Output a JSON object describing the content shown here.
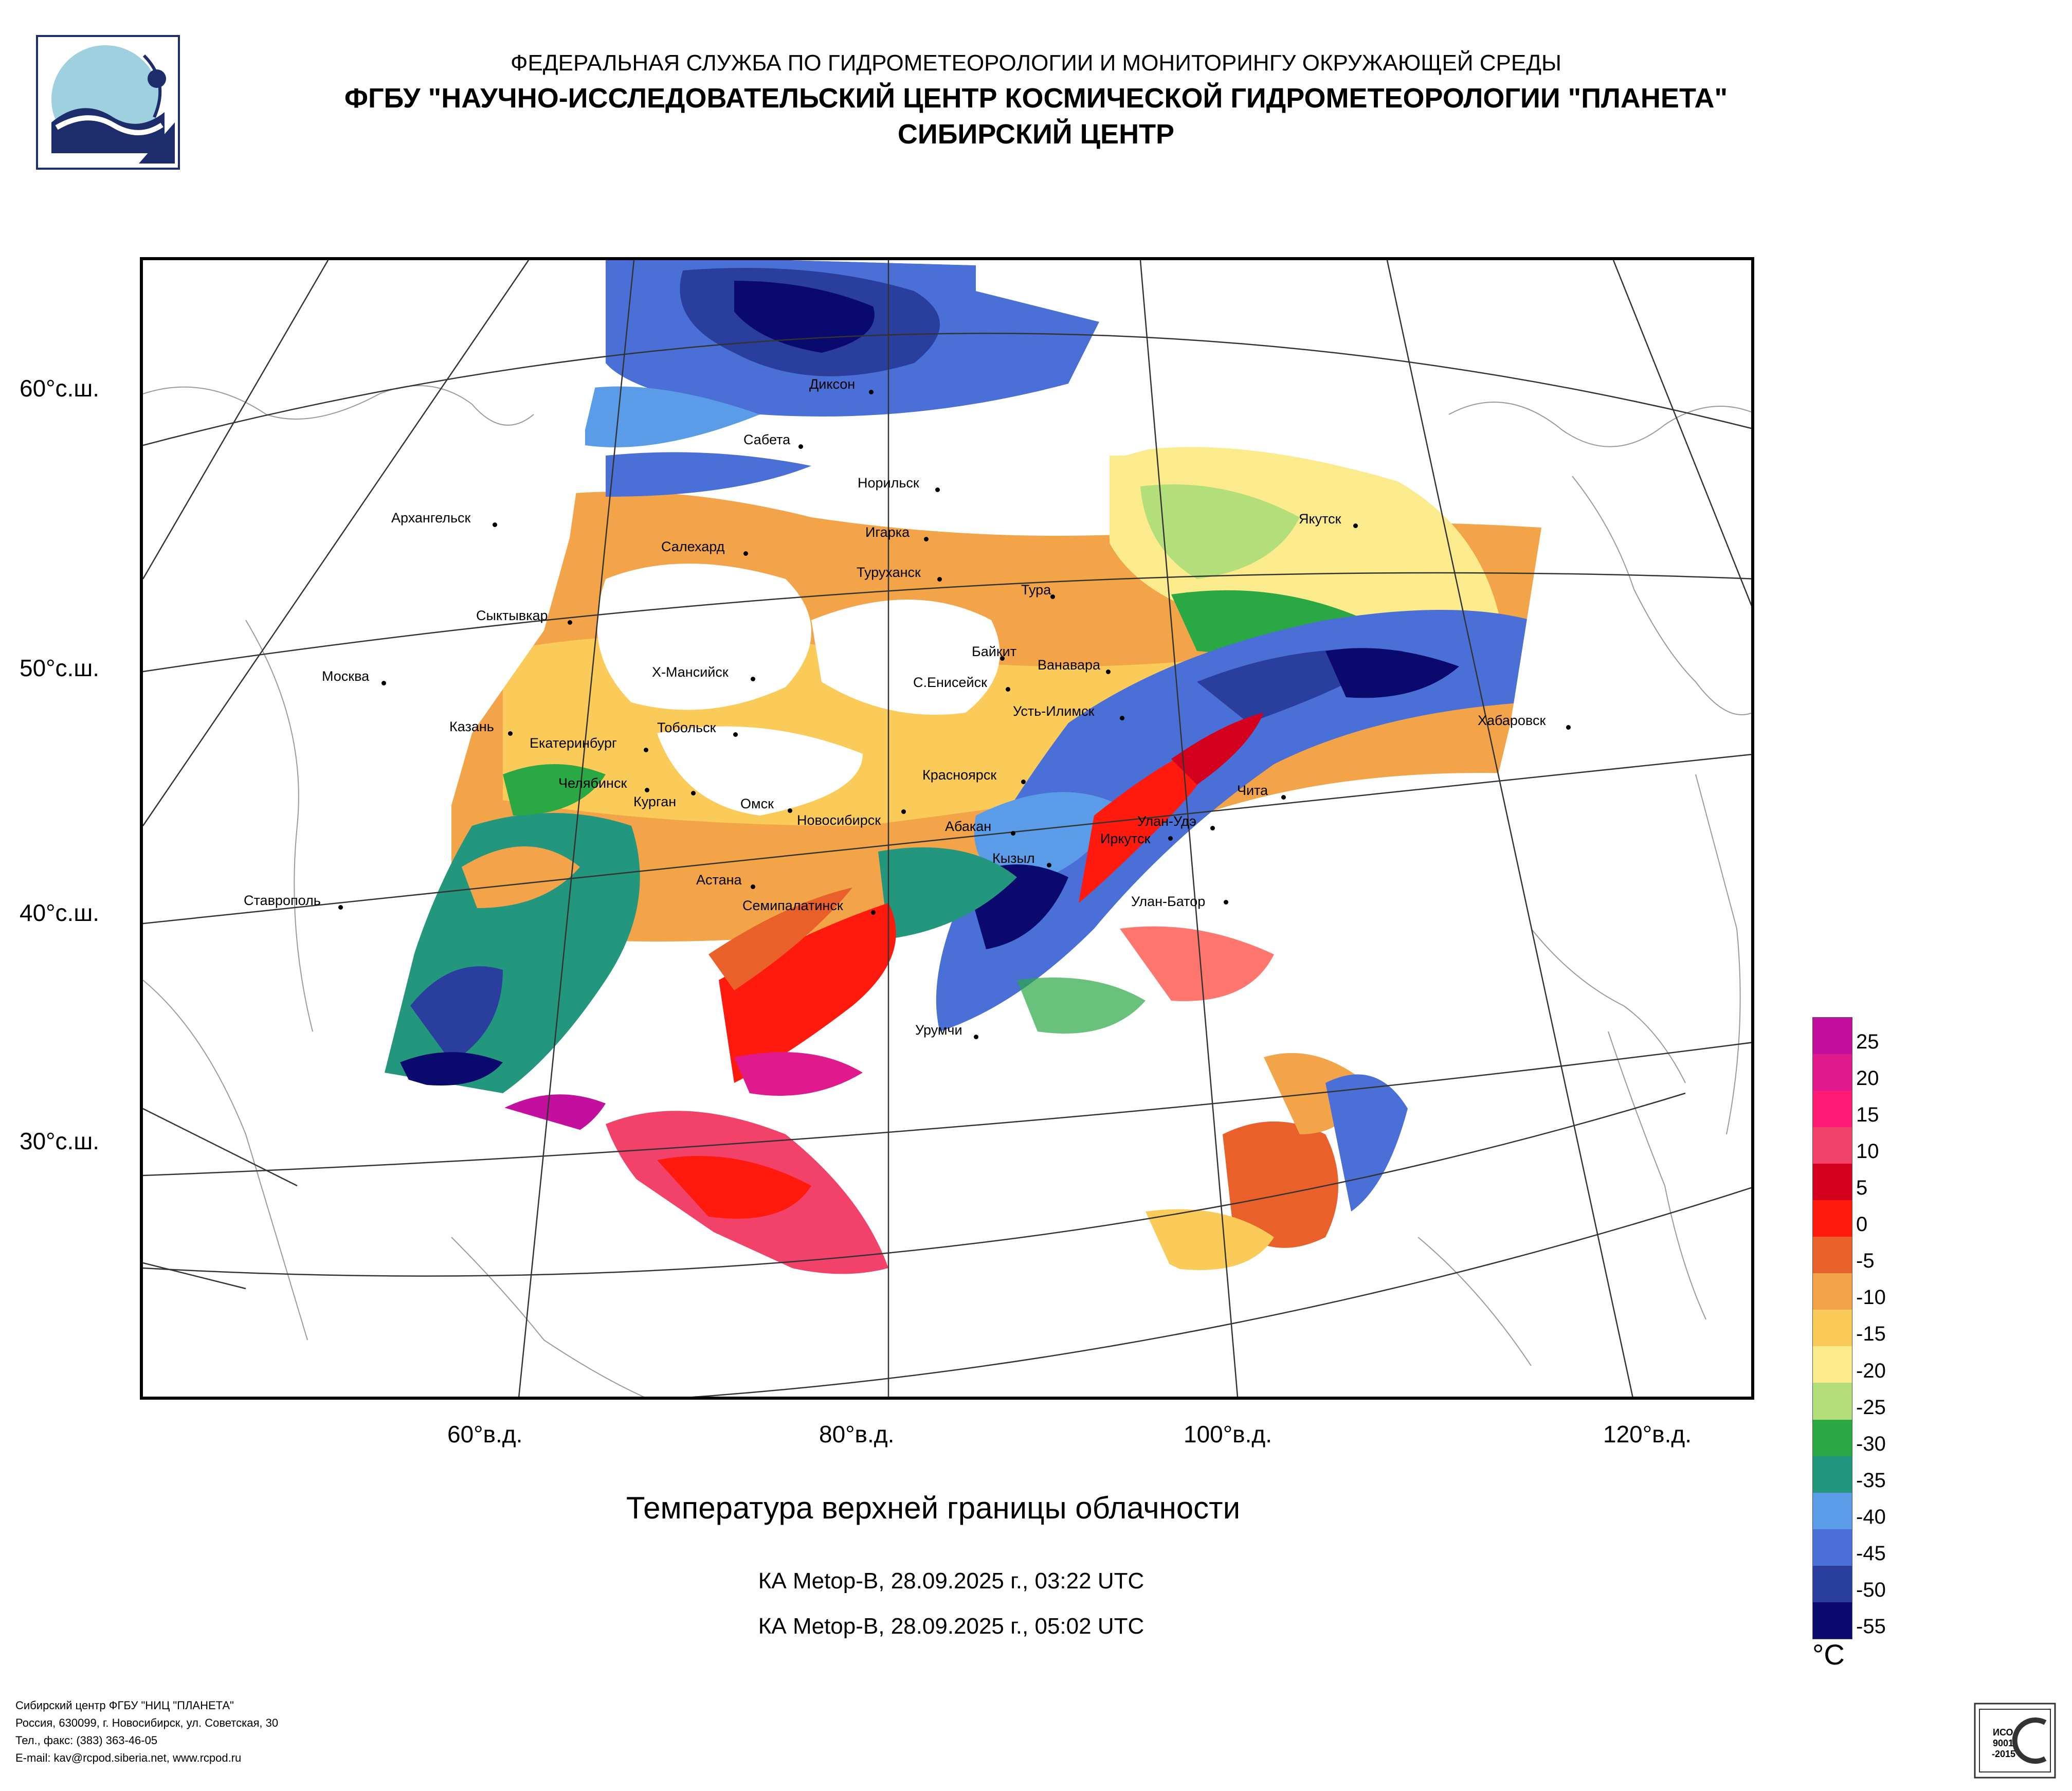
{
  "header": {
    "line1": "ФЕДЕРАЛЬНАЯ СЛУЖБА ПО ГИДРОМЕТЕОРОЛОГИИ И МОНИТОРИНГУ ОКРУЖАЮЩЕЙ СРЕДЫ",
    "line2": "ФГБУ \"НАУЧНО-ИССЛЕДОВАТЕЛЬСКИЙ ЦЕНТР КОСМИЧЕСКОЙ ГИДРОМЕТЕОРОЛОГИИ \"ПЛАНЕТА\"",
    "line3": "СИБИРСКИЙ ЦЕНТР"
  },
  "map": {
    "lat_labels": [
      "60°с.ш.",
      "50°с.ш.",
      "40°с.ш.",
      "30°с.ш."
    ],
    "lon_labels": [
      "60°в.д.",
      "80°в.д.",
      "100°в.д.",
      "120°в.д."
    ],
    "cities": [
      "Диксон",
      "Сабета",
      "Норильск",
      "Игарка",
      "Архангельск",
      "Салехард",
      "Туруханск",
      "Якутск",
      "Тура",
      "Сыктывкар",
      "Байкит",
      "Ванавара",
      "Х-Мансийск",
      "С.Енисейск",
      "Москва",
      "Усть-Илимск",
      "Хабаровск",
      "Казань",
      "Тобольск",
      "Екатеринбург",
      "Красноярск",
      "Чита",
      "Челябинск",
      "Курган",
      "Омск",
      "Новосибирск",
      "Абакан",
      "Улан-Удэ",
      "Иркутск",
      "Кызыл",
      "Астана",
      "Ставрополь",
      "Семипалатинск",
      "Улан-Батор",
      "Урумчи"
    ]
  },
  "title": "Температура верхней границы облачности",
  "subtitles": [
    "КА Metop-B, 28.09.2025 г., 03:22 UTC",
    "КА Metop-B, 28.09.2025 г., 05:02 UTC"
  ],
  "legend": {
    "unit": "°C",
    "ticks": [
      "25",
      "20",
      "15",
      "10",
      "5",
      "0",
      "-5",
      "-10",
      "-15",
      "-20",
      "-25",
      "-30",
      "-35",
      "-40",
      "-45",
      "-50",
      "-55"
    ],
    "colors": [
      "#c20f9e",
      "#e0198c",
      "#ff1a75",
      "#f2426a",
      "#d3001e",
      "#ff1a0d",
      "#e9602a",
      "#f3a448",
      "#fbcb5a",
      "#fbeb8c",
      "#b2df79",
      "#2aa843",
      "#23967e",
      "#5b9ce8",
      "#4a6fd6",
      "#2a3e9e",
      "#0a0a6e"
    ]
  },
  "footer": {
    "line1": "Сибирский центр ФГБУ \"НИЦ \"ПЛАНЕТА\"",
    "line2": "Россия, 630099, г. Новосибирск, ул. Советская, 30",
    "line3": "Тел., факс: (383) 363-46-05",
    "line4": "E-mail: kav@rcpod.siberia.net, www.rcpod.ru"
  },
  "iso_badge": "ИСО 9001 -2015"
}
